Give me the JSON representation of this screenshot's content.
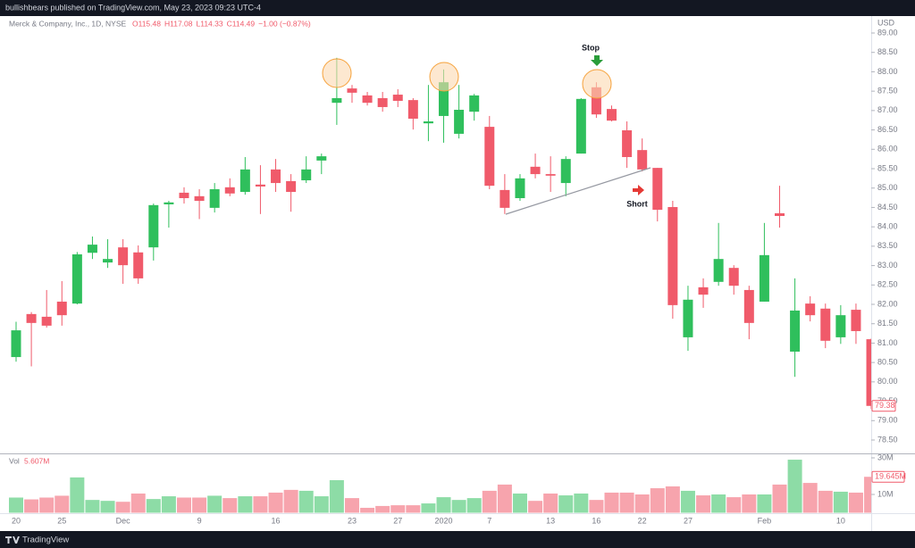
{
  "header": {
    "publisher": "bullishbears published on TradingView.com, May 23, 2023 09:23 UTC-4",
    "brand": "TradingView"
  },
  "chart_data": {
    "type": "candlestick",
    "title": "Merck & Company, Inc., 1D, NYSE",
    "ohlc_legend": [
      "O115.48",
      "H117.08",
      "L114.33",
      "C114.49",
      "−1.00 (−0.87%)"
    ],
    "currency": "USD",
    "categories": [
      "20",
      null,
      null,
      "25",
      null,
      null,
      null,
      "Dec",
      null,
      null,
      null,
      null,
      "9",
      null,
      null,
      null,
      null,
      "16",
      null,
      null,
      null,
      null,
      "23",
      null,
      null,
      "27",
      null,
      null,
      "2020",
      null,
      null,
      "7",
      null,
      null,
      null,
      "13",
      null,
      null,
      "16",
      null,
      null,
      "22",
      null,
      null,
      "27",
      null,
      null,
      null,
      null,
      "Feb",
      null,
      null,
      null,
      null,
      "10",
      null,
      null
    ],
    "open": [
      80.64,
      81.75,
      81.68,
      82.07,
      82.02,
      83.33,
      83.08,
      83.47,
      83.34,
      83.47,
      84.58,
      84.88,
      84.79,
      84.49,
      85.02,
      84.9,
      85.09,
      85.48,
      85.18,
      85.2,
      85.71,
      87.2,
      87.57,
      87.39,
      87.32,
      87.41,
      87.27,
      86.67,
      86.86,
      86.4,
      86.97,
      86.58,
      84.95,
      84.74,
      85.55,
      85.36,
      85.13,
      85.89,
      87.6,
      87.04,
      86.49,
      85.98,
      85.52,
      84.51,
      81.15,
      82.44,
      82.58,
      82.94,
      82.37,
      82.07,
      84.35,
      80.78,
      82.02,
      81.89,
      81.15,
      81.86,
      81.1
    ],
    "high": [
      81.55,
      81.8,
      82.37,
      82.6,
      83.35,
      83.75,
      83.68,
      83.68,
      83.52,
      84.6,
      84.67,
      85.02,
      84.97,
      85.13,
      85.25,
      85.8,
      85.59,
      85.75,
      85.36,
      85.82,
      85.89,
      88.36,
      87.66,
      87.48,
      87.48,
      87.55,
      87.32,
      87.66,
      88.06,
      87.66,
      87.43,
      86.86,
      85.36,
      85.36,
      85.89,
      85.82,
      85.82,
      87.32,
      87.73,
      87.13,
      86.72,
      86.28,
      85.52,
      84.67,
      82.48,
      82.67,
      84.1,
      83.01,
      82.48,
      84.1,
      85.06,
      82.67,
      82.21,
      82.02,
      81.98,
      82.02,
      81.12
    ],
    "low": [
      80.52,
      80.4,
      81.4,
      81.45,
      82.0,
      83.17,
      82.94,
      82.53,
      82.53,
      83.13,
      83.98,
      84.6,
      84.2,
      84.37,
      84.79,
      84.83,
      84.33,
      84.9,
      84.39,
      85.13,
      85.36,
      86.63,
      87.2,
      87.13,
      86.97,
      87.09,
      86.51,
      86.21,
      86.17,
      86.28,
      86.74,
      84.97,
      84.33,
      84.67,
      85.25,
      84.9,
      84.79,
      85.89,
      86.81,
      86.72,
      85.52,
      85.43,
      84.14,
      81.63,
      80.8,
      81.91,
      82.48,
      82.25,
      81.1,
      82.07,
      83.98,
      80.13,
      81.56,
      80.87,
      80.98,
      80.98,
      79.3
    ],
    "close": [
      81.33,
      81.52,
      81.45,
      81.72,
      83.29,
      83.54,
      83.17,
      83.01,
      82.67,
      84.56,
      84.63,
      84.74,
      84.67,
      84.97,
      84.86,
      85.48,
      85.04,
      85.13,
      84.9,
      85.48,
      85.82,
      87.32,
      87.46,
      87.2,
      87.09,
      87.25,
      86.79,
      86.72,
      87.73,
      87.02,
      87.39,
      85.06,
      84.49,
      85.25,
      85.36,
      85.32,
      85.75,
      87.3,
      86.9,
      86.74,
      85.8,
      85.48,
      84.44,
      81.98,
      82.12,
      82.25,
      83.17,
      82.48,
      81.52,
      83.27,
      84.28,
      81.84,
      81.72,
      81.06,
      81.72,
      81.31,
      79.38
    ],
    "volume": [
      8.3,
      7.3,
      8.3,
      9.3,
      19.3,
      7,
      6.5,
      6,
      10.5,
      7.5,
      9,
      8.3,
      8.3,
      9.3,
      8,
      9,
      9,
      11,
      12.5,
      12,
      9,
      17.8,
      8,
      2.7,
      3.7,
      4.1,
      4.1,
      5.1,
      8.5,
      7,
      8,
      12,
      15.4,
      10.5,
      6.5,
      10.5,
      9.5,
      10.5,
      7,
      11,
      11,
      10,
      13.4,
      14.4,
      12,
      9.5,
      10,
      8.5,
      10,
      10,
      15.4,
      29,
      16.3,
      12,
      11.5,
      11,
      19.645
    ],
    "up_color": "#2fbf5c",
    "down_color": "#f05a6a",
    "ylim": [
      78.5,
      89.0
    ],
    "yticks": [
      {
        "value": 78.5,
        "label": "78.50"
      },
      {
        "value": 79.0,
        "label": "79.00"
      },
      {
        "value": 79.5,
        "label": "79.50"
      },
      {
        "value": 80.0,
        "label": "80.00"
      },
      {
        "value": 80.5,
        "label": "80.50"
      },
      {
        "value": 81.0,
        "label": "81.00"
      },
      {
        "value": 81.5,
        "label": "81.50"
      },
      {
        "value": 82.0,
        "label": "82.00"
      },
      {
        "value": 82.5,
        "label": "82.50"
      },
      {
        "value": 83.0,
        "label": "83.00"
      },
      {
        "value": 83.5,
        "label": "83.50"
      },
      {
        "value": 84.0,
        "label": "84.00"
      },
      {
        "value": 84.5,
        "label": "84.50"
      },
      {
        "value": 85.0,
        "label": "85.00"
      },
      {
        "value": 85.5,
        "label": "85.50"
      },
      {
        "value": 86.0,
        "label": "86.00"
      },
      {
        "value": 86.5,
        "label": "86.50"
      },
      {
        "value": 87.0,
        "label": "87.00"
      },
      {
        "value": 87.5,
        "label": "87.50"
      },
      {
        "value": 88.0,
        "label": "88.00"
      },
      {
        "value": 88.5,
        "label": "88.50"
      },
      {
        "value": 89.0,
        "label": "89.00"
      }
    ],
    "last_price_label": "79.38",
    "volume_title": "Vol",
    "volume_legend": "5.607M",
    "volume_ticks": [
      {
        "value": 10,
        "label": "10M"
      },
      {
        "value": 30,
        "label": "30M"
      }
    ],
    "volume_last_label": "19.645M",
    "annotations": [
      "Stop",
      "Short"
    ],
    "grid": false
  }
}
